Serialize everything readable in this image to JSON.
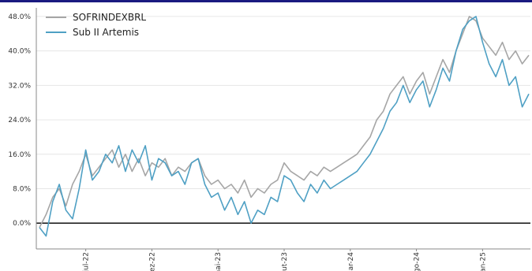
{
  "chart_data": {
    "type": "line",
    "title": "",
    "xlabel": "",
    "ylabel": "",
    "ylim": [
      -6,
      50
    ],
    "y_ticks": [
      "48.0%",
      "40.0%",
      "32.0%",
      "24.0%",
      "16.0%",
      "8.0%",
      "0.0%"
    ],
    "y_tick_values": [
      48,
      40,
      32,
      24,
      16,
      8,
      0
    ],
    "x_ticks": [
      "jul-22",
      "dez-22",
      "mai-23",
      "out-23",
      "mar-24",
      "ago-24",
      "jan-25"
    ],
    "x_tick_positions": [
      3.5,
      8.5,
      13.5,
      18.5,
      23.5,
      28.5,
      33.5
    ],
    "x_range": [
      0,
      37
    ],
    "grid": "horizontal",
    "legend": "top-left",
    "zero_line": true,
    "series": [
      {
        "name": "SOFRINDEXBRL",
        "color": "#a6a6a6",
        "x": [
          0,
          0.5,
          1,
          1.5,
          2,
          2.5,
          3,
          3.5,
          4,
          4.5,
          5,
          5.5,
          6,
          6.5,
          7,
          7.5,
          8,
          8.5,
          9,
          9.5,
          10,
          10.5,
          11,
          11.5,
          12,
          12.5,
          13,
          13.5,
          14,
          14.5,
          15,
          15.5,
          16,
          16.5,
          17,
          17.5,
          18,
          18.5,
          19,
          19.5,
          20,
          20.5,
          21,
          21.5,
          22,
          22.5,
          23,
          23.5,
          24,
          24.5,
          25,
          25.5,
          26,
          26.5,
          27,
          27.5,
          28,
          28.5,
          29,
          29.5,
          30,
          30.5,
          31,
          31.5,
          32,
          32.5,
          33,
          33.5,
          34,
          34.5,
          35,
          35.5,
          36,
          36.5,
          37
        ],
        "values": [
          -1,
          2,
          6,
          8,
          4,
          9,
          12,
          16,
          11,
          13,
          15,
          17,
          13,
          16,
          12,
          15,
          11,
          14,
          13,
          15,
          11,
          13,
          12,
          14,
          15,
          11,
          9,
          10,
          8,
          9,
          7,
          10,
          6,
          8,
          7,
          9,
          10,
          14,
          12,
          11,
          10,
          12,
          11,
          13,
          12,
          13,
          14,
          15,
          16,
          18,
          20,
          24,
          26,
          30,
          32,
          34,
          30,
          33,
          35,
          30,
          34,
          38,
          35,
          40,
          44,
          48,
          47,
          43,
          41,
          39,
          42,
          38,
          40,
          37,
          39
        ]
      },
      {
        "name": "Sub II Artemis",
        "color": "#4fa0c4",
        "x": [
          0,
          0.5,
          1,
          1.5,
          2,
          2.5,
          3,
          3.5,
          4,
          4.5,
          5,
          5.5,
          6,
          6.5,
          7,
          7.5,
          8,
          8.5,
          9,
          9.5,
          10,
          10.5,
          11,
          11.5,
          12,
          12.5,
          13,
          13.5,
          14,
          14.5,
          15,
          15.5,
          16,
          16.5,
          17,
          17.5,
          18,
          18.5,
          19,
          19.5,
          20,
          20.5,
          21,
          21.5,
          22,
          22.5,
          23,
          23.5,
          24,
          24.5,
          25,
          25.5,
          26,
          26.5,
          27,
          27.5,
          28,
          28.5,
          29,
          29.5,
          30,
          30.5,
          31,
          31.5,
          32,
          32.5,
          33,
          33.5,
          34,
          34.5,
          35,
          35.5,
          36,
          36.5,
          37
        ],
        "values": [
          -1,
          -3,
          5,
          9,
          3,
          1,
          8,
          17,
          10,
          12,
          16,
          14,
          18,
          12,
          17,
          14,
          18,
          10,
          15,
          14,
          11,
          12,
          9,
          14,
          15,
          9,
          6,
          7,
          3,
          6,
          2,
          5,
          0,
          3,
          2,
          6,
          5,
          11,
          10,
          7,
          5,
          9,
          7,
          10,
          8,
          9,
          10,
          11,
          12,
          14,
          16,
          19,
          22,
          26,
          28,
          32,
          28,
          31,
          33,
          27,
          31,
          36,
          33,
          40,
          45,
          47,
          48,
          42,
          37,
          34,
          38,
          32,
          34,
          27,
          30
        ]
      }
    ]
  }
}
